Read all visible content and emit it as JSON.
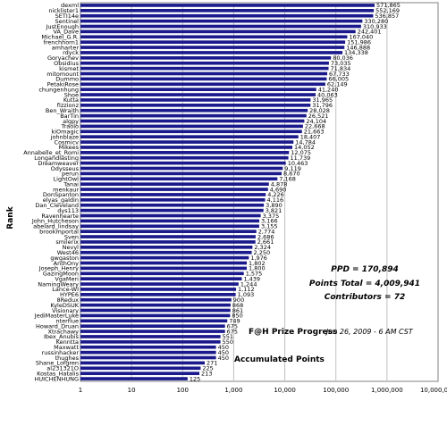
{
  "chart_data": {
    "type": "bar",
    "orientation": "horizontal",
    "scale": "log",
    "xlim": [
      1,
      10000000
    ],
    "x_ticks": [
      "1",
      "10",
      "100",
      "1,000",
      "10,000",
      "100,000",
      "1,000,000",
      "10,000,000"
    ],
    "ylabel": "Rank",
    "xlabel": "Accumulated Points",
    "title": "F@H Prize Progress",
    "subtitle": "Jan 26, 2009 - 6 AM CST",
    "grid": true,
    "series_color": "#1a1a8c",
    "stats": {
      "ppd": "PPD = 170,894",
      "points_total": "Points Total = 4,009,941",
      "contributors": "Contributors = 72"
    },
    "categories": [
      "dexml",
      "nicklister1",
      "SETI14e",
      "Sentinel",
      "JustEnough",
      "VA_Dave",
      "Michael_G.R.",
      "frenchhorn1",
      "amharter",
      "rdyck",
      "Goryachev",
      "Obsidius",
      "kismet",
      "mitomount",
      "Dummo",
      "PetakiRose",
      "chungenhung",
      "Shoe",
      "Kutta",
      "fizzionz",
      "Ben_Wraith",
      "BarTin",
      "algpy",
      "Traolo",
      "kiOmagic",
      "johnblaze",
      "Cosmicv",
      "Mikees",
      "Annabelle_et_Romi",
      "Longandlasting",
      "Dreamweaver",
      "Odysseus",
      "perun",
      "LightOwl",
      "Tanai",
      "menkaur",
      "DonSpanton",
      "elyas_galdin",
      "Dan_Cleveland",
      "dys113",
      "Ravenhearte",
      "John_Hutcheson",
      "abelard_lindsay",
      "brookmportal",
      "Sven",
      "smilerix",
      "Nevyl",
      "West46",
      "gwgaston",
      "AnthOny",
      "Joseph_Henry",
      "GazingMoon",
      "VgaMeri",
      "NamingWeary",
      "Lance-WI",
      "HYPE6",
      "8Redux",
      "KyleDSUK",
      "Visionary",
      "JediMasterLuke",
      "nterflue",
      "Howard_Druan",
      "Xtrachawy",
      "Ibex_Anubis",
      "Kenntta",
      "Maxwatt",
      "russinhacker",
      "thughes",
      "Shane_Lofgren",
      "al231321O",
      "Kostas_Hatalis",
      "HUICHENHUNG"
    ],
    "values": [
      571865,
      552169,
      536857,
      330280,
      310933,
      242401,
      167040,
      151986,
      146888,
      134338,
      80036,
      73035,
      71834,
      67733,
      66005,
      62149,
      41240,
      40063,
      31965,
      31796,
      28028,
      26521,
      24104,
      22668,
      21663,
      18407,
      14784,
      14052,
      12075,
      11739,
      10463,
      9119,
      8670,
      7168,
      4878,
      4690,
      4226,
      4116,
      3890,
      3821,
      3375,
      3166,
      3155,
      2774,
      2686,
      2661,
      2324,
      2250,
      1976,
      1802,
      1800,
      1575,
      1439,
      1244,
      1112,
      1093,
      900,
      868,
      861,
      850,
      749,
      675,
      675,
      551,
      550,
      450,
      450,
      450,
      271,
      225,
      213,
      125
    ],
    "value_labels": [
      "571,865",
      "552,169",
      "536,857",
      "330,280",
      "310,933",
      "242,401",
      "167,040",
      "151,986",
      "146,888",
      "134,338",
      "80,036",
      "73,035",
      "71,834",
      "67,733",
      "66,005",
      "62,149",
      "41,240",
      "40,063",
      "31,965",
      "31,796",
      "28,028",
      "26,521",
      "24,104",
      "22,668",
      "21,663",
      "18,407",
      "14,784",
      "14,052",
      "12,075",
      "11,739",
      "10,463",
      "9,119",
      "8,670",
      "7,168",
      "4,878",
      "4,690",
      "4,226",
      "4,116",
      "3,890",
      "3,821",
      "3,375",
      "3,166",
      "3,155",
      "2,774",
      "2,686",
      "2,661",
      "2,324",
      "2,250",
      "1,976",
      "1,802",
      "1,800",
      "1,575",
      "1,439",
      "1,244",
      "1,112",
      "1,093",
      "900",
      "868",
      "861",
      "850",
      "749",
      "675",
      "675",
      "551",
      "550",
      "450",
      "450",
      "450",
      "271",
      "225",
      "213",
      "125"
    ]
  }
}
